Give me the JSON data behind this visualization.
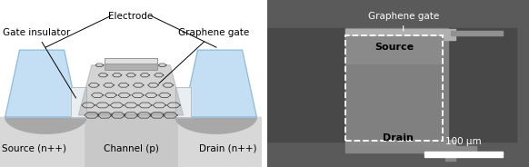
{
  "fig_width": 5.82,
  "fig_height": 1.84,
  "dpi": 100,
  "bg_color": "#ffffff",
  "left_panel": {
    "substrate_color": "#c8c8c8",
    "substrate_light": "#d8d8d8",
    "substrate_dark": "#a8a8a8",
    "electrode_color": "#b8d8f0",
    "electrode_top": "#d0e8f8",
    "electrode_edge": "#88b8d8",
    "insulator_color": "#e0eff8",
    "insulator_edge": "#a0c8e0",
    "gate_box_color": "#d0d0d0",
    "gate_box_top": "#e8e8e8",
    "graphene_color": "#383838",
    "graphene_bg": "#888888",
    "labels": {
      "electrode": "Electrode",
      "graphene_gate": "Graphene gate",
      "gate_insulator": "Gate insulator",
      "source": "Source (n++)",
      "channel": "Channel (p)",
      "drain": "Drain (n++)"
    },
    "font_size": 7.5
  },
  "right_panel": {
    "bg_color": "#606060",
    "bg_dark": "#484848",
    "pad_color": "#707070",
    "pad_dark": "#484848",
    "channel_color": "#909090",
    "gate_strip_color": "#b8b8b8",
    "gate_strip_dark": "#888888",
    "source_label_color": "#000000",
    "drain_label_color": "#000000",
    "dashed_color": "#ffffff",
    "scalebar_color": "#ffffff",
    "label_color": "#ffffff",
    "labels": {
      "graphene_gate": "Graphene gate",
      "source": "Source",
      "drain": "Drain",
      "scalebar": "100 μm"
    },
    "font_size": 7.5
  }
}
